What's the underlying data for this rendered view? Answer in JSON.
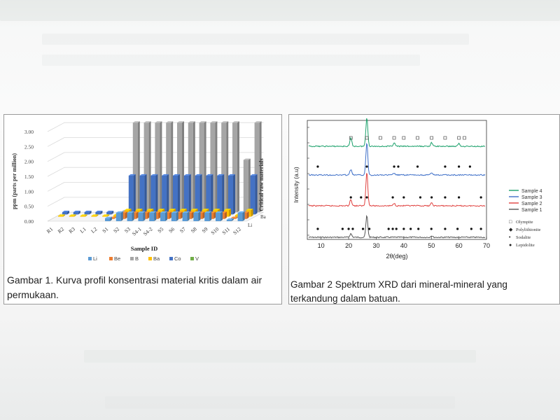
{
  "figures": {
    "left": {
      "caption": "Gambar 1. Kurva profil konsentrasi material kritis dalam air permukaan."
    },
    "right": {
      "caption": "Gambar 2 Spektrum XRD dari mineral-mineral yang terkandung dalam batuan."
    }
  },
  "chart_data": [
    {
      "type": "bar",
      "title": "",
      "xlabel": "Sample ID",
      "ylabel": "ppm (parts per million)",
      "zlabel": "Critical raw materials",
      "depth_tick_labels": [
        "Ba",
        "Li"
      ],
      "ylim": [
        0,
        3.0
      ],
      "yticks": [
        "0.00",
        "0.50",
        "1.00",
        "1.50",
        "2.00",
        "2.50",
        "3.00"
      ],
      "categories": [
        "R1",
        "R2",
        "R3",
        "L1",
        "L2",
        "S1",
        "S2",
        "S3",
        "S4-1",
        "S4-2",
        "S5",
        "S6",
        "S7",
        "S8",
        "S9",
        "S10",
        "S11",
        "S12"
      ],
      "series": [
        {
          "name": "Li",
          "color": "#5b9bd5",
          "values": [
            0,
            0,
            0,
            0,
            0,
            0.1,
            0.28,
            0.28,
            0.28,
            0.28,
            0.28,
            0.28,
            0.28,
            0.28,
            0.28,
            0.28,
            0.05,
            0.28
          ]
        },
        {
          "name": "Be",
          "color": "#ed7d31",
          "values": [
            0,
            0,
            0,
            0,
            0,
            0.03,
            0.2,
            0.2,
            0.2,
            0.2,
            0.2,
            0.2,
            0.2,
            0.2,
            0.2,
            0.2,
            0.03,
            0.2
          ]
        },
        {
          "name": "B",
          "color": "#a5a5a5",
          "values": [
            0,
            0,
            0,
            0,
            0,
            0.03,
            3.0,
            3.0,
            3.0,
            3.0,
            3.0,
            3.0,
            3.0,
            3.0,
            3.0,
            3.0,
            1.75,
            3.0
          ]
        },
        {
          "name": "Ba",
          "color": "#ffc000",
          "values": [
            0.03,
            0.03,
            0.03,
            0.03,
            0.03,
            0.05,
            0.22,
            0.22,
            0.22,
            0.22,
            0.22,
            0.22,
            0.22,
            0.22,
            0.22,
            0.22,
            0.05,
            0.22
          ]
        },
        {
          "name": "Co",
          "color": "#4472c4",
          "values": [
            0.08,
            0.08,
            0.08,
            0.08,
            0.08,
            0.06,
            1.3,
            1.3,
            1.3,
            1.3,
            1.3,
            1.3,
            1.3,
            1.3,
            1.3,
            1.3,
            0.06,
            1.3
          ]
        },
        {
          "name": "V",
          "color": "#70ad47",
          "values": [
            0,
            0,
            0,
            0,
            0,
            0,
            0,
            0,
            0,
            0,
            0,
            0,
            0,
            0,
            0,
            0,
            0,
            0
          ]
        }
      ]
    },
    {
      "type": "line",
      "title": "",
      "xlabel": "2θ(deg)",
      "ylabel": "Intensity (a.u)",
      "xlim": [
        5,
        70
      ],
      "xticks": [
        10,
        20,
        30,
        40,
        50,
        60,
        70
      ],
      "series": [
        {
          "name": "Sample 4",
          "color": "#1aa06a",
          "offset": 3,
          "peaks": [
            [
              20.8,
              0.45
            ],
            [
              26.6,
              1.6
            ],
            [
              36.5,
              0.2
            ],
            [
              50.1,
              0.2
            ],
            [
              60.0,
              0.15
            ]
          ]
        },
        {
          "name": "Sample 3",
          "color": "#3e6fc8",
          "offset": 2,
          "peaks": [
            [
              20.8,
              0.3
            ],
            [
              26.6,
              1.8
            ],
            [
              36.5,
              0.1
            ],
            [
              50.1,
              0.12
            ]
          ]
        },
        {
          "name": "Sample 2",
          "color": "#e0413f",
          "offset": 1,
          "peaks": [
            [
              20.8,
              0.35
            ],
            [
              26.6,
              1.9
            ],
            [
              36.5,
              0.15
            ],
            [
              50.1,
              0.15
            ]
          ]
        },
        {
          "name": "Sample 1",
          "color": "#555555",
          "offset": 0,
          "peaks": [
            [
              20.8,
              0.2
            ],
            [
              26.6,
              1.2
            ],
            [
              50.1,
              0.08
            ]
          ]
        }
      ],
      "phase_legend": [
        {
          "symbol": "□",
          "name": "Olympite"
        },
        {
          "symbol": "◆",
          "name": "Polylithionite"
        },
        {
          "symbol": "•",
          "name": "Sodalite"
        },
        {
          "symbol": "●",
          "name": "Lepidolite"
        }
      ]
    }
  ]
}
